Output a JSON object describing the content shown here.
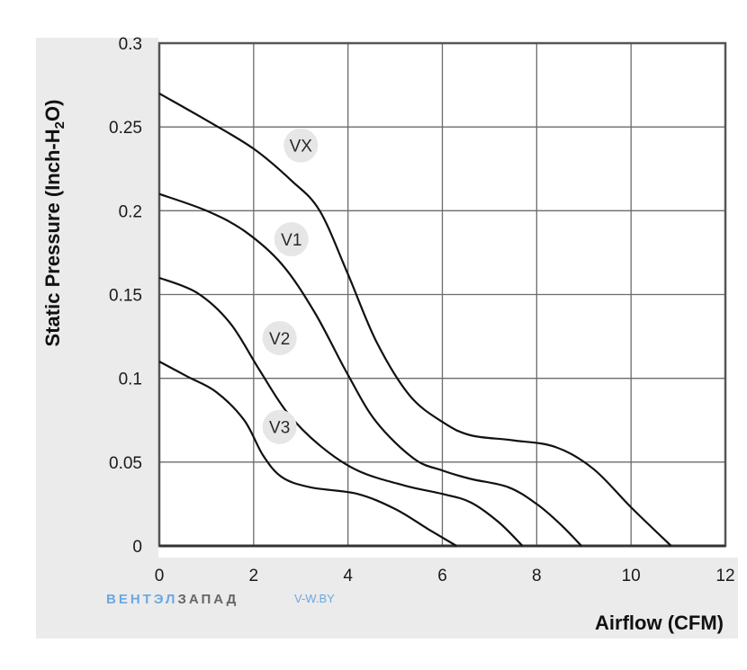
{
  "chart_data": {
    "type": "line",
    "title": "",
    "xlabel": "Airflow (CFM)",
    "ylabel": {
      "main": "Static Pressure (Inch-H",
      "sub": "2",
      "end": "O)"
    },
    "xlim": [
      0,
      12
    ],
    "ylim": [
      0,
      0.3
    ],
    "xticks": [
      "0",
      "2",
      "4",
      "6",
      "8",
      "10",
      "12"
    ],
    "yticks": [
      "0",
      "0.05",
      "0.1",
      "0.15",
      "0.2",
      "0.25",
      "0.3"
    ],
    "grid": true,
    "series": [
      {
        "name": "VX",
        "label_at": [
          3.0,
          0.239
        ],
        "points": [
          [
            0,
            0.27
          ],
          [
            1,
            0.254
          ],
          [
            2,
            0.237
          ],
          [
            2.8,
            0.218
          ],
          [
            3.4,
            0.2
          ],
          [
            4,
            0.162
          ],
          [
            4.6,
            0.122
          ],
          [
            5.3,
            0.09
          ],
          [
            6,
            0.074
          ],
          [
            6.6,
            0.066
          ],
          [
            7.5,
            0.063
          ],
          [
            8.4,
            0.059
          ],
          [
            9.2,
            0.046
          ],
          [
            10,
            0.023
          ],
          [
            10.85,
            0
          ]
        ]
      },
      {
        "name": "V1",
        "label_at": [
          2.8,
          0.183
        ],
        "points": [
          [
            0,
            0.21
          ],
          [
            1,
            0.2
          ],
          [
            1.8,
            0.188
          ],
          [
            2.6,
            0.168
          ],
          [
            3.3,
            0.139
          ],
          [
            4,
            0.102
          ],
          [
            4.6,
            0.074
          ],
          [
            5.4,
            0.052
          ],
          [
            6,
            0.045
          ],
          [
            6.6,
            0.04
          ],
          [
            7.4,
            0.035
          ],
          [
            8,
            0.025
          ],
          [
            8.5,
            0.013
          ],
          [
            8.95,
            0
          ]
        ]
      },
      {
        "name": "V2",
        "label_at": [
          2.55,
          0.124
        ],
        "points": [
          [
            0,
            0.16
          ],
          [
            0.8,
            0.151
          ],
          [
            1.5,
            0.133
          ],
          [
            2.1,
            0.106
          ],
          [
            2.7,
            0.08
          ],
          [
            3.4,
            0.06
          ],
          [
            4.2,
            0.045
          ],
          [
            5.2,
            0.036
          ],
          [
            6,
            0.031
          ],
          [
            6.6,
            0.026
          ],
          [
            7.2,
            0.014
          ],
          [
            7.7,
            0
          ]
        ]
      },
      {
        "name": "V3",
        "label_at": [
          2.55,
          0.071
        ],
        "points": [
          [
            0,
            0.11
          ],
          [
            0.6,
            0.101
          ],
          [
            1.2,
            0.092
          ],
          [
            1.8,
            0.075
          ],
          [
            2.2,
            0.054
          ],
          [
            2.6,
            0.041
          ],
          [
            3.2,
            0.035
          ],
          [
            4.2,
            0.031
          ],
          [
            5,
            0.022
          ],
          [
            5.7,
            0.01
          ],
          [
            6.3,
            0
          ]
        ]
      }
    ]
  },
  "watermark": {
    "brand_blue": "ВЕНТЭЛ",
    "brand_dark": "ЗАПАД",
    "site": "V-W.BY",
    "blue_color": "#6aa8e0",
    "dark_color": "#666666"
  },
  "colors": {
    "curve": "#111111",
    "grid": "#6b6b6b",
    "band": "#ebebeb",
    "label_bg": "#e6e6e6"
  }
}
